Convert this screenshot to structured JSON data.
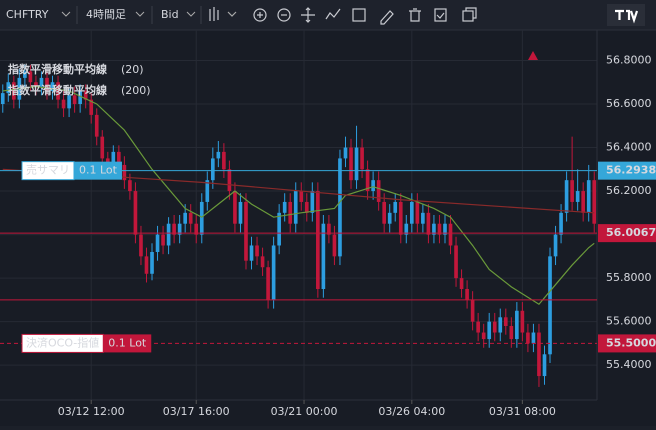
{
  "ui": {
    "symbol": "CHFTRY",
    "timeframe": "4時間足",
    "price_type": "Bid"
  },
  "chart_data": {
    "type": "candlestick",
    "up_color": "#2d9ee0",
    "down_color": "#c2173b",
    "open": [
      56.6,
      56.65,
      56.7,
      56.62,
      56.72,
      56.75,
      56.7,
      56.68,
      56.72,
      56.66,
      56.7,
      56.62,
      56.58,
      56.64,
      56.6,
      56.66,
      56.62,
      56.55,
      56.45,
      56.35,
      56.3,
      56.38,
      56.32,
      56.25,
      56.2,
      56.0,
      55.9,
      55.82,
      55.92,
      56.0,
      55.95,
      56.05,
      56.0,
      56.05,
      56.1,
      56.05,
      56.0,
      56.15,
      56.25,
      56.35,
      56.38,
      56.3,
      56.2,
      56.05,
      56.15,
      55.88,
      55.95,
      55.9,
      55.85,
      55.7,
      55.95,
      56.1,
      56.15,
      56.05,
      56.2,
      56.15,
      56.1,
      56.2,
      55.75,
      56.05,
      56.0,
      55.9,
      56.35,
      56.4,
      56.25,
      56.4,
      56.3,
      56.2,
      56.25,
      56.15,
      56.05,
      56.1,
      56.15,
      56.0,
      56.05,
      56.15,
      56.05,
      56.1,
      56.0,
      56.05,
      56.0,
      56.05,
      55.95,
      55.8,
      55.75,
      55.7,
      55.6,
      55.55,
      55.52,
      55.6,
      55.55,
      55.62,
      55.58,
      55.52,
      55.65,
      55.55,
      55.5,
      55.55,
      55.35,
      55.45,
      55.9,
      56.0,
      56.1,
      56.25,
      56.15,
      56.2,
      56.1,
      56.25
    ],
    "high": [
      56.69,
      56.74,
      56.73,
      56.76,
      56.78,
      56.78,
      56.73,
      56.75,
      56.75,
      56.73,
      56.73,
      56.66,
      56.67,
      56.68,
      56.69,
      56.69,
      56.65,
      56.58,
      56.48,
      56.38,
      56.41,
      56.41,
      56.36,
      56.28,
      56.24,
      56.04,
      55.94,
      55.96,
      56.04,
      56.04,
      56.08,
      56.09,
      56.09,
      56.14,
      56.14,
      56.09,
      56.19,
      56.29,
      56.4,
      56.43,
      56.42,
      56.34,
      56.24,
      56.19,
      56.19,
      55.99,
      55.99,
      55.94,
      55.88,
      55.99,
      56.14,
      56.19,
      56.19,
      56.24,
      56.24,
      56.19,
      56.24,
      56.24,
      56.09,
      56.09,
      56.04,
      56.39,
      56.45,
      56.44,
      56.5,
      56.44,
      56.34,
      56.29,
      56.29,
      56.19,
      56.14,
      56.19,
      56.19,
      56.09,
      56.19,
      56.19,
      56.14,
      56.14,
      56.09,
      56.09,
      56.09,
      56.09,
      55.99,
      55.84,
      55.79,
      55.74,
      55.64,
      55.59,
      55.64,
      55.64,
      55.66,
      55.66,
      55.62,
      55.69,
      55.69,
      55.59,
      55.59,
      55.59,
      55.49,
      55.94,
      56.04,
      56.14,
      56.29,
      56.45,
      56.3,
      56.24,
      56.32,
      56.29
    ],
    "low": [
      56.56,
      56.61,
      56.58,
      56.58,
      56.68,
      56.66,
      56.64,
      56.64,
      56.62,
      56.62,
      56.58,
      56.54,
      56.54,
      56.56,
      56.56,
      56.58,
      56.51,
      56.41,
      56.31,
      56.26,
      56.26,
      56.28,
      56.21,
      56.16,
      55.96,
      55.86,
      55.78,
      55.79,
      55.88,
      55.91,
      55.91,
      55.96,
      55.96,
      56.01,
      56.01,
      55.96,
      55.96,
      56.11,
      56.21,
      56.31,
      56.26,
      56.16,
      56.01,
      56.01,
      55.84,
      55.84,
      55.86,
      55.81,
      55.66,
      55.66,
      55.91,
      56.06,
      56.01,
      56.01,
      56.11,
      56.06,
      56.06,
      55.71,
      55.71,
      55.96,
      55.86,
      55.86,
      56.31,
      56.21,
      56.21,
      56.26,
      56.16,
      56.16,
      56.11,
      56.01,
      56.01,
      56.06,
      55.96,
      55.96,
      56.01,
      56.01,
      56.01,
      55.96,
      55.96,
      55.96,
      55.96,
      55.91,
      55.76,
      55.71,
      55.66,
      55.56,
      55.51,
      55.48,
      55.48,
      55.51,
      55.51,
      55.54,
      55.48,
      55.48,
      55.51,
      55.46,
      55.46,
      55.3,
      55.31,
      55.41,
      55.86,
      55.96,
      56.06,
      56.11,
      56.11,
      56.06,
      56.06,
      56.01
    ],
    "close": [
      56.65,
      56.7,
      56.62,
      56.72,
      56.75,
      56.7,
      56.68,
      56.72,
      56.66,
      56.7,
      56.62,
      56.58,
      56.64,
      56.6,
      56.66,
      56.62,
      56.55,
      56.45,
      56.35,
      56.3,
      56.38,
      56.32,
      56.25,
      56.2,
      56.0,
      55.9,
      55.82,
      55.92,
      56.0,
      55.95,
      56.05,
      56.0,
      56.05,
      56.1,
      56.05,
      56.0,
      56.15,
      56.25,
      56.35,
      56.38,
      56.3,
      56.2,
      56.05,
      56.15,
      55.88,
      55.95,
      55.9,
      55.85,
      55.7,
      55.95,
      56.1,
      56.15,
      56.05,
      56.2,
      56.15,
      56.1,
      56.2,
      55.75,
      56.05,
      56.0,
      55.9,
      56.35,
      56.4,
      56.25,
      56.4,
      56.3,
      56.2,
      56.25,
      56.15,
      56.05,
      56.1,
      56.15,
      56.0,
      56.05,
      56.15,
      56.05,
      56.1,
      56.0,
      56.05,
      56.0,
      56.05,
      55.95,
      55.8,
      55.75,
      55.7,
      55.6,
      55.55,
      55.52,
      55.6,
      55.55,
      55.62,
      55.58,
      55.52,
      55.65,
      55.55,
      55.5,
      55.55,
      55.35,
      55.45,
      55.9,
      56.0,
      56.1,
      56.25,
      56.15,
      56.2,
      56.1,
      56.25,
      56.05
    ],
    "xlim": [
      -0.5,
      107.5
    ],
    "xticks": [
      {
        "value": 16,
        "label": "03/12 12:00"
      },
      {
        "value": 35,
        "label": "03/17 16:00"
      },
      {
        "value": 54.5,
        "label": "03/21 00:00"
      },
      {
        "value": 74,
        "label": "03/26 04:00"
      },
      {
        "value": 94,
        "label": "03/31 08:00"
      }
    ],
    "ylim": [
      55.24,
      56.94
    ],
    "yticks": [
      {
        "value": 55.4,
        "label": "55.4000"
      },
      {
        "value": 55.6,
        "label": "55.6000"
      },
      {
        "value": 55.8,
        "label": "55.8000"
      },
      {
        "value": 56.0,
        "label": "56.0000"
      },
      {
        "value": 56.2,
        "label": "56.2000"
      },
      {
        "value": 56.4,
        "label": "56.4000"
      },
      {
        "value": 56.6,
        "label": "56.6000"
      },
      {
        "value": 56.8,
        "label": "56.8000"
      }
    ],
    "grid": true,
    "overlays": [
      {
        "name": "指数平滑移動平均線",
        "period_text": "(20)",
        "color": "#6a9a3a",
        "legend_color": "#7cc44a",
        "x": [
          0,
          6,
          12,
          17,
          22,
          27,
          33,
          36,
          39,
          42,
          45,
          49,
          54,
          60,
          62,
          67,
          72,
          78,
          81,
          85,
          88,
          92,
          97,
          99,
          103,
          106,
          107
        ],
        "values": [
          56.66,
          56.68,
          56.66,
          56.6,
          56.48,
          56.3,
          56.12,
          56.08,
          56.14,
          56.2,
          56.14,
          56.08,
          56.1,
          56.12,
          56.18,
          56.22,
          56.18,
          56.12,
          56.08,
          55.95,
          55.84,
          55.76,
          55.68,
          55.74,
          55.86,
          55.94,
          55.96
        ]
      },
      {
        "name": "指数平滑移動平均線",
        "period_text": "(200)",
        "color": "#8a2a2a",
        "legend_color": "#c2173b",
        "x": [
          0,
          36,
          72,
          107
        ],
        "values": [
          56.3,
          56.24,
          56.16,
          56.1
        ]
      }
    ],
    "price_lines": [
      {
        "value": 56.2938,
        "color": "#35a7d9",
        "tagged": true,
        "order_label": "売サマリ",
        "lot": "0.1 Lot"
      },
      {
        "value": 56.0067,
        "color": "#c2173b",
        "tagged": true
      },
      {
        "value": 55.7,
        "color": "#c2173b",
        "tagged": false
      },
      {
        "value": 55.5,
        "label": "55.5000",
        "color": "#c2173b",
        "tagged": true,
        "dashed": true,
        "order_label": "決済OCO-指値",
        "lot": "0.1 Lot"
      }
    ]
  }
}
